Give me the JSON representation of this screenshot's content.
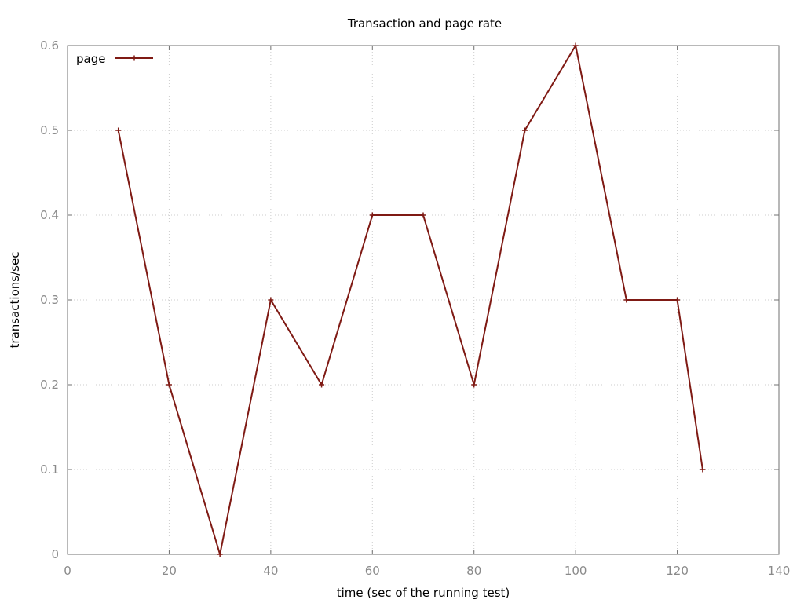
{
  "chart_data": {
    "type": "line",
    "title": "Transaction and page rate",
    "xlabel": "time (sec of the running test)",
    "ylabel": "transactions/sec",
    "xlim": [
      0,
      140
    ],
    "ylim": [
      0,
      0.6
    ],
    "x_ticks": [
      "0",
      "20",
      "40",
      "60",
      "80",
      "100",
      "120",
      "140"
    ],
    "y_ticks": [
      "0",
      "0.1",
      "0.2",
      "0.3",
      "0.4",
      "0.5",
      "0.6"
    ],
    "grid": true,
    "legend_position": "top-left",
    "series": [
      {
        "name": "page",
        "color": "#7f1a14",
        "x": [
          10,
          20,
          30,
          40,
          50,
          60,
          70,
          80,
          90,
          100,
          110,
          120,
          125
        ],
        "y": [
          0.5,
          0.2,
          0.0,
          0.3,
          0.2,
          0.4,
          0.4,
          0.2,
          0.5,
          0.6,
          0.3,
          0.3,
          0.1
        ]
      }
    ]
  }
}
